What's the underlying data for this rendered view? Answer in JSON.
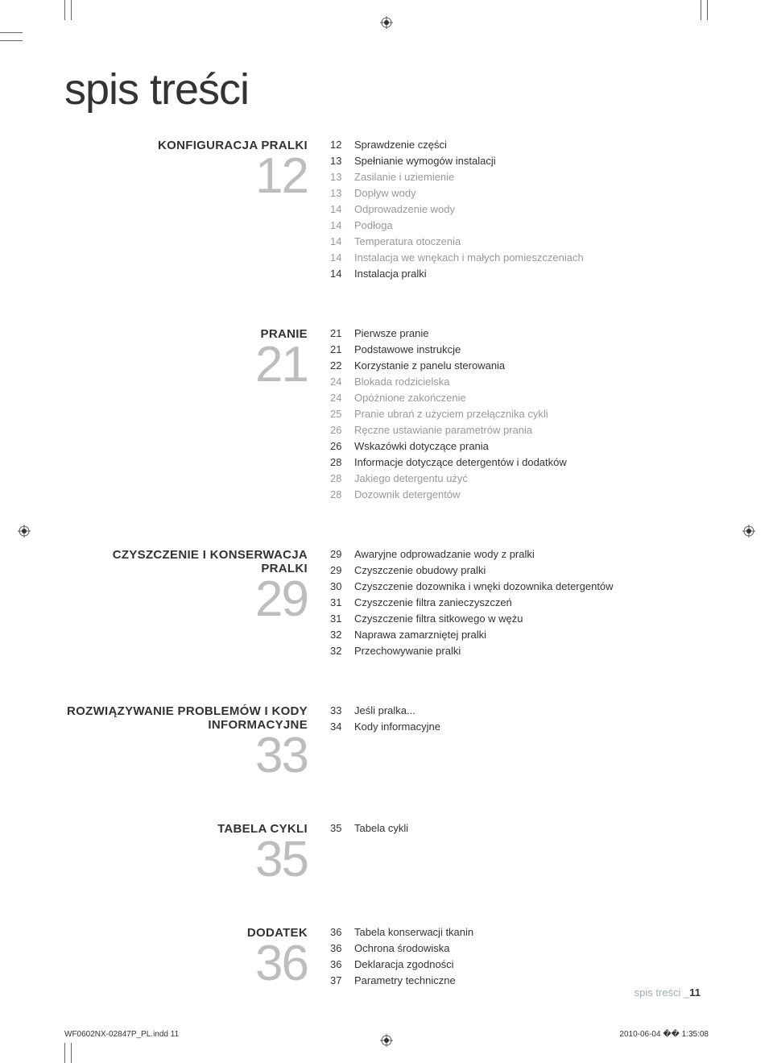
{
  "page_title": "spis treści",
  "sections": [
    {
      "label": "KONFIGURACJA PRALKI",
      "num": "12",
      "items": [
        {
          "n": "12",
          "t": "Sprawdzenie części",
          "sub": false
        },
        {
          "n": "13",
          "t": "Spełnianie wymogów instalacji",
          "sub": false
        },
        {
          "n": "13",
          "t": "Zasilanie i uziemienie",
          "sub": true
        },
        {
          "n": "13",
          "t": "Dopływ wody",
          "sub": true
        },
        {
          "n": "14",
          "t": "Odprowadzenie wody",
          "sub": true
        },
        {
          "n": "14",
          "t": "Podłoga",
          "sub": true
        },
        {
          "n": "14",
          "t": "Temperatura otoczenia",
          "sub": true
        },
        {
          "n": "14",
          "t": "Instalacja we wnękach i małych pomieszczeniach",
          "sub": true
        },
        {
          "n": "14",
          "t": "Instalacja pralki",
          "sub": false
        }
      ]
    },
    {
      "label": "PRANIE",
      "num": "21",
      "items": [
        {
          "n": "21",
          "t": "Pierwsze pranie",
          "sub": false
        },
        {
          "n": "21",
          "t": "Podstawowe instrukcje",
          "sub": false
        },
        {
          "n": "22",
          "t": "Korzystanie z panelu sterowania",
          "sub": false
        },
        {
          "n": "24",
          "t": "Blokada rodzicielska",
          "sub": true
        },
        {
          "n": "24",
          "t": "Opóźnione zakończenie",
          "sub": true
        },
        {
          "n": "25",
          "t": "Pranie ubrań z użyciem przełącznika cykli",
          "sub": true
        },
        {
          "n": "26",
          "t": "Ręczne ustawianie parametrów prania",
          "sub": true
        },
        {
          "n": "26",
          "t": "Wskazówki dotyczące prania",
          "sub": false
        },
        {
          "n": "28",
          "t": "Informacje dotyczące detergentów i dodatków",
          "sub": false
        },
        {
          "n": "28",
          "t": "Jakiego detergentu użyć",
          "sub": true
        },
        {
          "n": "28",
          "t": "Dozownik detergentów",
          "sub": true
        }
      ]
    },
    {
      "label": "CZYSZCZENIE I KONSERWACJA PRALKI",
      "num": "29",
      "items": [
        {
          "n": "29",
          "t": "Awaryjne odprowadzanie wody z pralki",
          "sub": false
        },
        {
          "n": "29",
          "t": "Czyszczenie obudowy pralki",
          "sub": false
        },
        {
          "n": "30",
          "t": "Czyszczenie dozownika i wnęki dozownika detergentów",
          "sub": false
        },
        {
          "n": "31",
          "t": "Czyszczenie filtra zanieczyszczeń",
          "sub": false
        },
        {
          "n": "31",
          "t": "Czyszczenie filtra sitkowego w wężu",
          "sub": false
        },
        {
          "n": "32",
          "t": "Naprawa zamarzniętej pralki",
          "sub": false
        },
        {
          "n": "32",
          "t": "Przechowywanie pralki",
          "sub": false
        }
      ]
    },
    {
      "label": "ROZWIĄZYWANIE PROBLEMÓW I KODY INFORMACYJNE",
      "num": "33",
      "items": [
        {
          "n": "33",
          "t": "Jeśli pralka...",
          "sub": false
        },
        {
          "n": "34",
          "t": "Kody informacyjne",
          "sub": false
        }
      ]
    },
    {
      "label": "TABELA CYKLI",
      "num": "35",
      "items": [
        {
          "n": "35",
          "t": "Tabela cykli",
          "sub": false
        }
      ]
    },
    {
      "label": "DODATEK",
      "num": "36",
      "items": [
        {
          "n": "36",
          "t": "Tabela konserwacji tkanin",
          "sub": false
        },
        {
          "n": "36",
          "t": "Ochrona środowiska",
          "sub": false
        },
        {
          "n": "36",
          "t": "Deklaracja zgodności",
          "sub": false
        },
        {
          "n": "37",
          "t": "Parametry techniczne",
          "sub": false
        }
      ]
    }
  ],
  "footer": {
    "running": "spis treści _",
    "page_num": "11"
  },
  "print_footer": {
    "file": "WF0602NX-02847P_PL.indd   11",
    "timestamp": "2010-06-04   �� 1:35:08"
  },
  "colors": {
    "text": "#333333",
    "muted": "#999999",
    "bignum": "#bdbdbd",
    "running": "#9caeb8",
    "bg": "#ffffff"
  }
}
